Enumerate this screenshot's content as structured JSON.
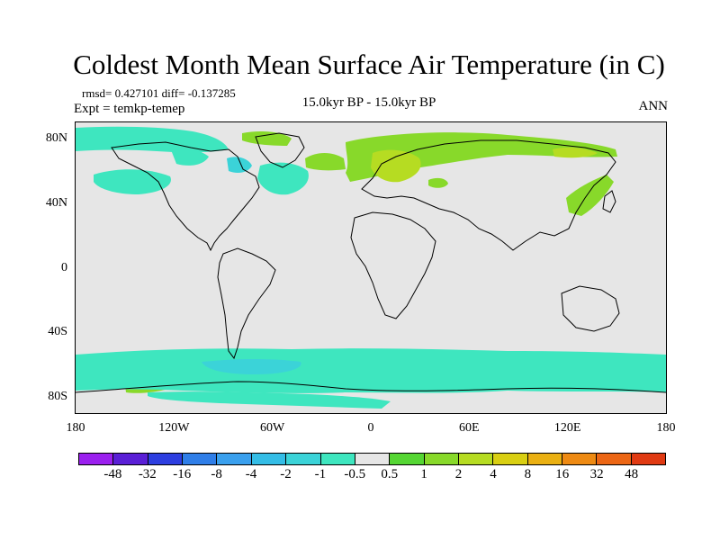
{
  "title": "Coldest Month Mean Surface Air Temperature (in C)",
  "stats_line": "rmsd= 0.427101 diff= -0.137285",
  "experiment_line": "Expt = temkp-temep",
  "period_line": "15.0kyr BP - 15.0kyr BP",
  "season_label": "ANN",
  "map": {
    "background_color": "#e6e6e6",
    "land_outline_color": "#000000",
    "lat_ticks": [
      {
        "value": 80,
        "label": "80N"
      },
      {
        "value": 40,
        "label": "40N"
      },
      {
        "value": 0,
        "label": "0"
      },
      {
        "value": -40,
        "label": "40S"
      },
      {
        "value": -80,
        "label": "80S"
      }
    ],
    "lon_ticks": [
      {
        "value": -180,
        "label": "180"
      },
      {
        "value": -120,
        "label": "120W"
      },
      {
        "value": -60,
        "label": "60W"
      },
      {
        "value": 0,
        "label": "0"
      },
      {
        "value": 60,
        "label": "60E"
      },
      {
        "value": 120,
        "label": "120E"
      },
      {
        "value": 180,
        "label": "180"
      }
    ]
  },
  "colorbar": {
    "colors": [
      "#9b20ef",
      "#5a1fd6",
      "#2d3ee0",
      "#2f7ee8",
      "#3aa0ee",
      "#34bde6",
      "#3bd3d8",
      "#3ee6bf",
      "#e6e6e6",
      "#55d633",
      "#88d92a",
      "#b6dc22",
      "#d9cf12",
      "#eab012",
      "#ee8a13",
      "#ec6614",
      "#e03a12"
    ],
    "labels": [
      "-48",
      "-32",
      "-16",
      "-8",
      "-4",
      "-2",
      "-1",
      "-0.5",
      "0.5",
      "1",
      "2",
      "4",
      "8",
      "16",
      "32",
      "48"
    ]
  },
  "anomaly_colors": {
    "cool_light": "#3ee6bf",
    "cool_medium": "#3bd3d8",
    "warm_light": "#88d92a",
    "warm_medium": "#b6dc22"
  }
}
